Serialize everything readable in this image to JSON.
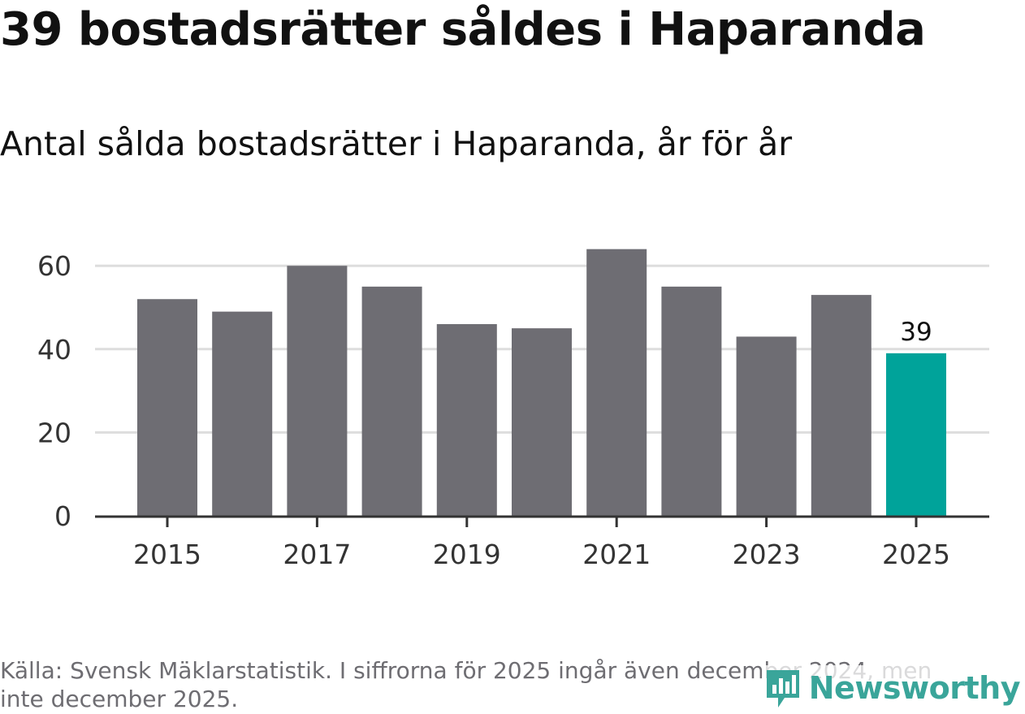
{
  "title": "39 bostadsrätter såldes i Haparanda",
  "subtitle": "Antal sålda bostadsrätter i Haparanda, år för år",
  "source_note": "Källa: Svensk Mäklarstatistik. I siffrorna för 2025 ingår även december 2024, men inte december 2025.",
  "brand": {
    "name": "Newsworthy",
    "logo_icon": "newsworthy-chart-logo-icon",
    "color": "#3aa59a"
  },
  "colors": {
    "bar": "#6e6d73",
    "highlight": "#00a39a",
    "grid": "#dddddd",
    "axis": "#333333",
    "tick_text": "#333333"
  },
  "chart_data": {
    "type": "bar",
    "categories": [
      "2015",
      "2016",
      "2017",
      "2018",
      "2019",
      "2020",
      "2021",
      "2022",
      "2023",
      "2024",
      "2025"
    ],
    "values": [
      52,
      49,
      60,
      55,
      46,
      45,
      64,
      55,
      43,
      53,
      39
    ],
    "highlight_index": 10,
    "data_labels": [
      {
        "index": 10,
        "text": "39"
      }
    ],
    "x_tick_labels": [
      "2015",
      "2017",
      "2019",
      "2021",
      "2023",
      "2025"
    ],
    "y_ticks": [
      0,
      20,
      40,
      60
    ],
    "ylim": [
      0,
      66
    ],
    "xlabel": "",
    "ylabel": "",
    "grid": true,
    "legend": "none"
  }
}
